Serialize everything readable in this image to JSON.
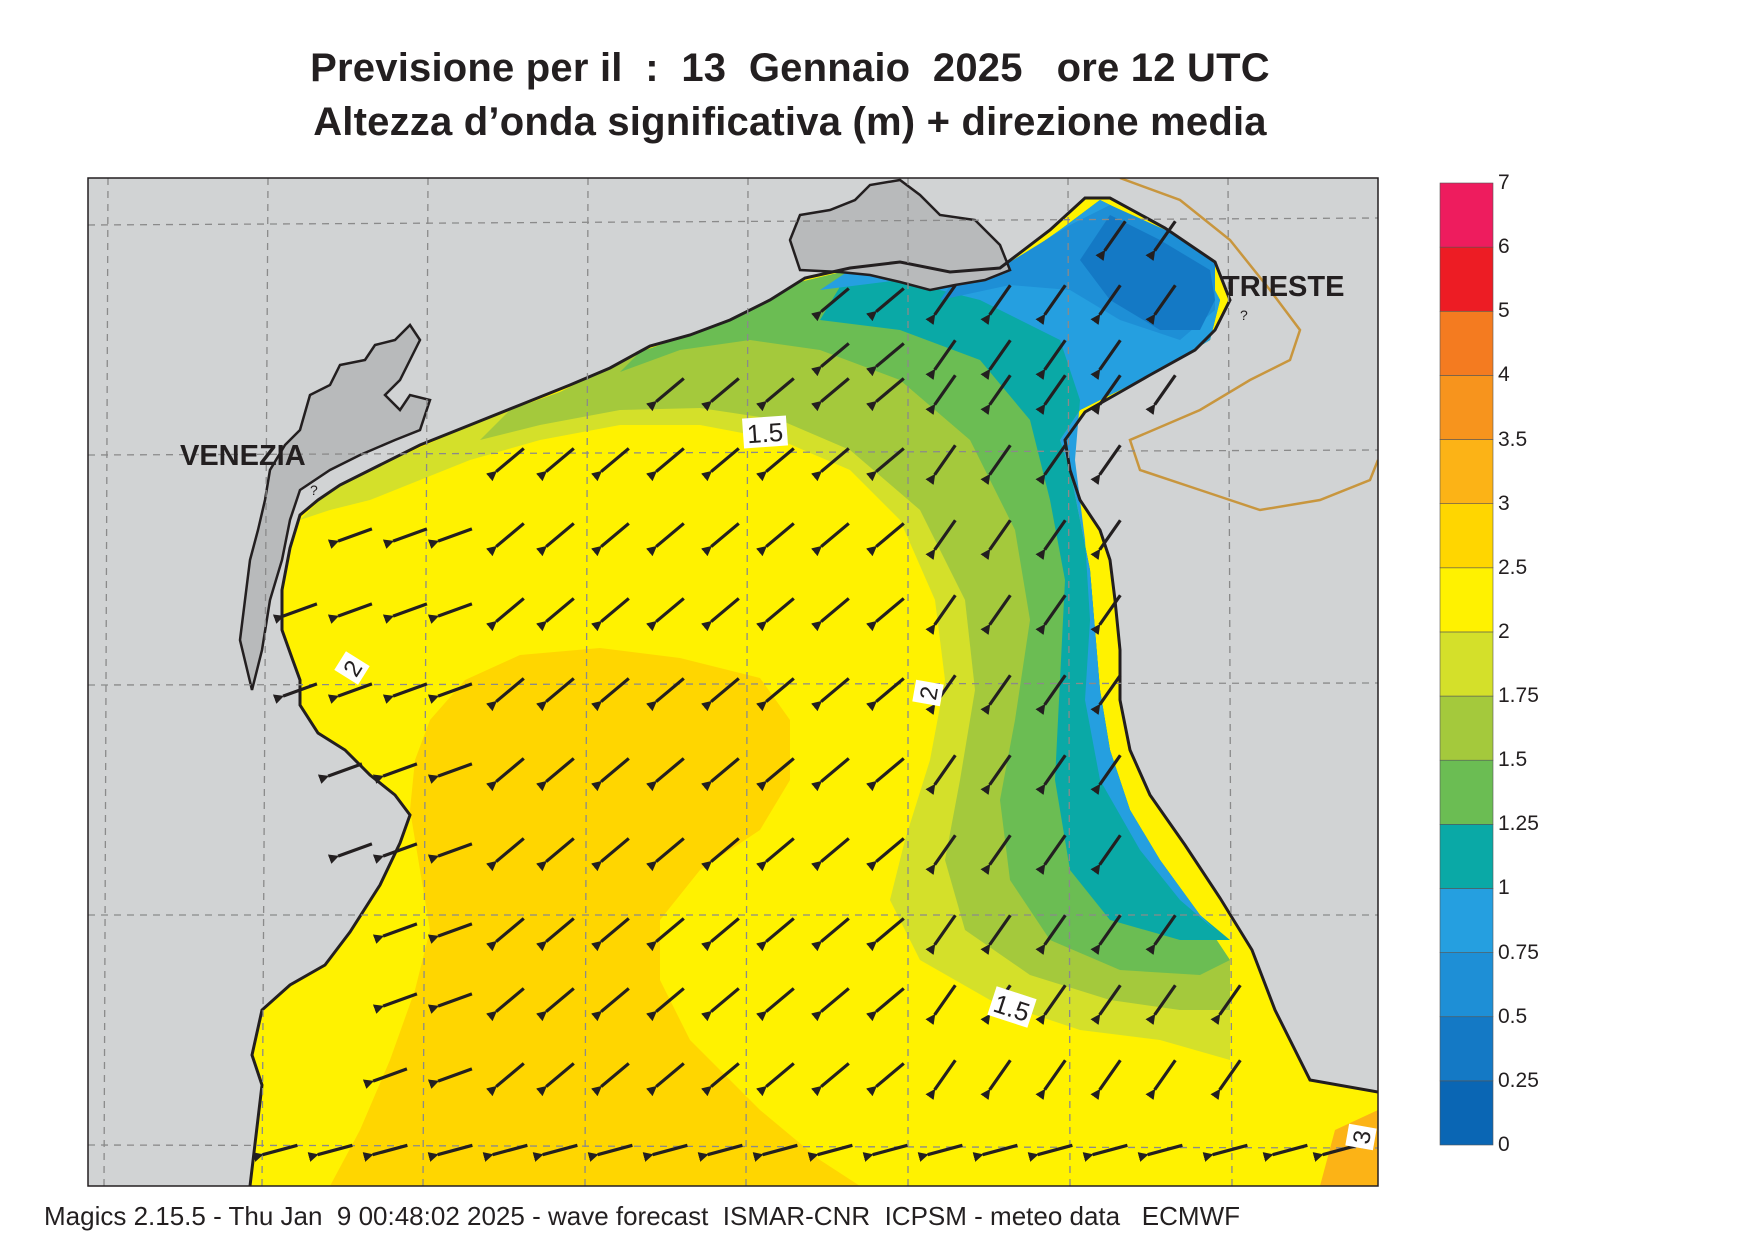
{
  "title": {
    "line1": "Previsione per il  :  13  Gennaio  2025   ore 12 UTC",
    "line2": "Altezza d’onda significativa (m) + direzione media"
  },
  "cities": {
    "venezia": "VENEZIA",
    "trieste": "TRIESTE"
  },
  "contour_labels": [
    "1.5",
    "2",
    "2",
    "1.5",
    "3"
  ],
  "colorbar": {
    "levels": [
      "0",
      "0.25",
      "0.5",
      "0.75",
      "1",
      "1.25",
      "1.5",
      "1.75",
      "2",
      "2.5",
      "3",
      "3.5",
      "4",
      "5",
      "6",
      "7"
    ],
    "colors": [
      "#0a66b4",
      "#1479c5",
      "#1e8fd6",
      "#259fe0",
      "#0aa9a6",
      "#6bbd53",
      "#a4c93c",
      "#d4e02a",
      "#fff200",
      "#ffd600",
      "#fcb316",
      "#f7941d",
      "#f47b20",
      "#ed1c24",
      "#ee1c5e"
    ]
  },
  "footer": "Magics 2.15.5 - Thu Jan  9 00:48:02 2025 - wave forecast  ISMAR-CNR  ICPSM - meteo data   ECMWF"
}
